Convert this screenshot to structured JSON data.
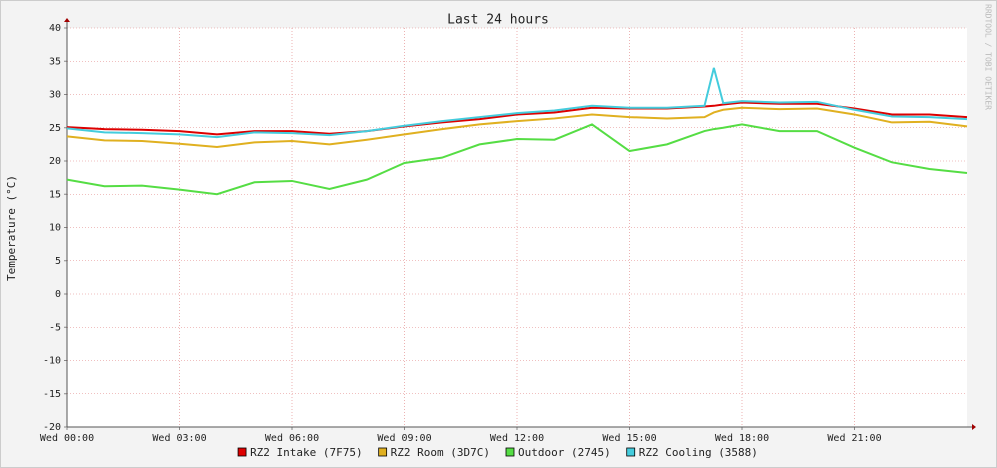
{
  "chart_data": {
    "type": "line",
    "title": "Last 24 hours",
    "y_label": "Temperature (°C)",
    "watermark": "RRDTOOL / TOBI OETIKER",
    "x": [
      0,
      1,
      2,
      3,
      4,
      5,
      6,
      7,
      8,
      9,
      10,
      11,
      12,
      13,
      14,
      15,
      16,
      17,
      17.25,
      17.5,
      18,
      19,
      20,
      21,
      22,
      23,
      24
    ],
    "xlim": [
      0,
      24
    ],
    "xticks": [
      {
        "value": 0,
        "label": "Wed 00:00"
      },
      {
        "value": 3,
        "label": "Wed 03:00"
      },
      {
        "value": 6,
        "label": "Wed 06:00"
      },
      {
        "value": 9,
        "label": "Wed 09:00"
      },
      {
        "value": 12,
        "label": "Wed 12:00"
      },
      {
        "value": 15,
        "label": "Wed 15:00"
      },
      {
        "value": 18,
        "label": "Wed 18:00"
      },
      {
        "value": 21,
        "label": "Wed 21:00"
      }
    ],
    "ylim": [
      -20,
      40
    ],
    "yticks": [
      -20,
      -15,
      -10,
      -5,
      0,
      5,
      10,
      15,
      20,
      25,
      30,
      35,
      40
    ],
    "grid": true,
    "series": [
      {
        "name": "RZ2 Intake (7F75)",
        "color": "#dd0000",
        "values": [
          25.1,
          24.8,
          24.7,
          24.5,
          24.0,
          24.5,
          24.5,
          24.1,
          24.5,
          25.2,
          25.8,
          26.3,
          27.0,
          27.3,
          28.0,
          27.9,
          27.9,
          28.2,
          28.3,
          28.5,
          28.8,
          28.6,
          28.6,
          27.9,
          27.0,
          27.0,
          26.6
        ]
      },
      {
        "name": "RZ2 Room (3D7C)",
        "color": "#e0b020",
        "values": [
          23.7,
          23.1,
          23.0,
          22.6,
          22.1,
          22.8,
          23.0,
          22.5,
          23.2,
          24.0,
          24.8,
          25.5,
          26.0,
          26.4,
          27.0,
          26.6,
          26.4,
          26.6,
          27.3,
          27.7,
          28.0,
          27.8,
          27.9,
          27.0,
          25.8,
          25.9,
          25.2
        ]
      },
      {
        "name": "Outdoor (2745)",
        "color": "#55dd44",
        "values": [
          17.2,
          16.2,
          16.3,
          15.7,
          15.0,
          16.8,
          17.0,
          15.8,
          17.2,
          19.7,
          20.5,
          22.5,
          23.3,
          23.2,
          25.5,
          21.5,
          22.5,
          24.5,
          24.8,
          25.0,
          25.5,
          24.5,
          24.5,
          22.0,
          19.8,
          18.8,
          18.2
        ]
      },
      {
        "name": "RZ2 Cooling (3588)",
        "color": "#44ccdd",
        "values": [
          24.9,
          24.3,
          24.2,
          24.0,
          23.6,
          24.3,
          24.2,
          23.9,
          24.5,
          25.3,
          26.0,
          26.6,
          27.2,
          27.6,
          28.3,
          28.0,
          28.0,
          28.3,
          34.0,
          28.7,
          29.0,
          28.8,
          28.9,
          27.7,
          26.7,
          26.6,
          26.3
        ]
      }
    ]
  }
}
